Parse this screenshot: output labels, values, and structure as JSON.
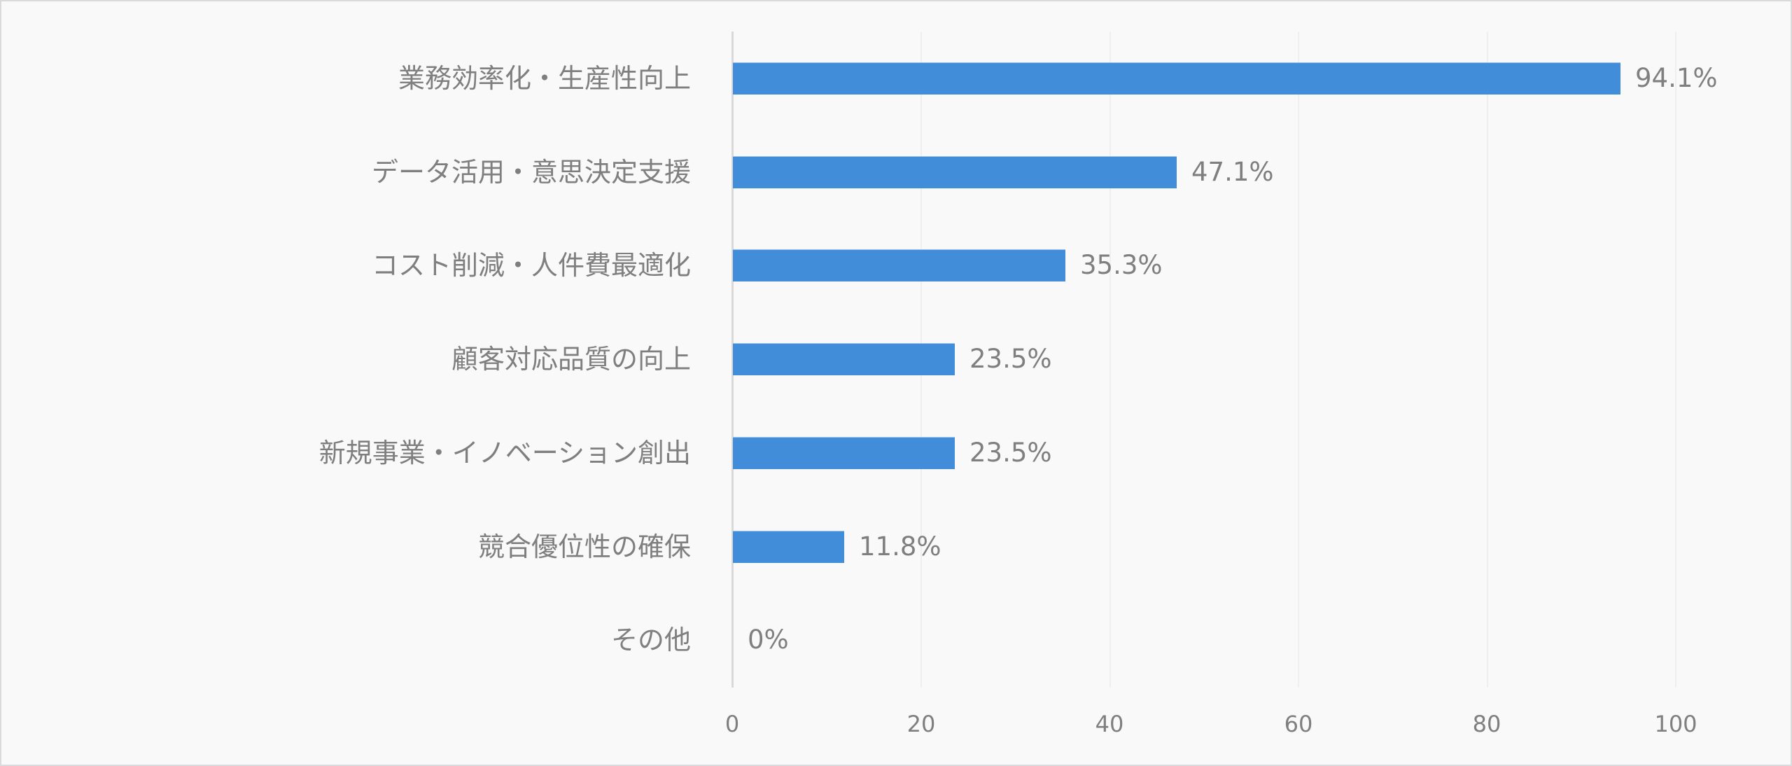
{
  "chart_data": {
    "type": "bar",
    "orientation": "horizontal",
    "title": "",
    "xlabel": "",
    "ylabel": "",
    "categories": [
      "業務効率化・生産性向上",
      "データ活用・意思決定支援",
      "コスト削減・人件費最適化",
      "顧客対応品質の向上",
      "新規事業・イノベーション創出",
      "競合優位性の確保",
      "その他"
    ],
    "values": [
      94.1,
      47.1,
      35.3,
      23.5,
      23.5,
      11.8,
      0
    ],
    "value_labels": [
      "94.1%",
      "47.1%",
      "35.3%",
      "23.5%",
      "23.5%",
      "11.8%",
      "0%"
    ],
    "xlim": [
      0,
      100
    ],
    "x_ticks": [
      "0",
      "20",
      "40",
      "60",
      "80",
      "100"
    ],
    "grid": true,
    "legend": null,
    "bar_color": "#418dd9"
  },
  "colors": {
    "bar": "#418dd9",
    "text": "#7f7f7f",
    "background": "#f9f9f9",
    "grid": "#efefef",
    "axis": "#d9d9d9"
  }
}
